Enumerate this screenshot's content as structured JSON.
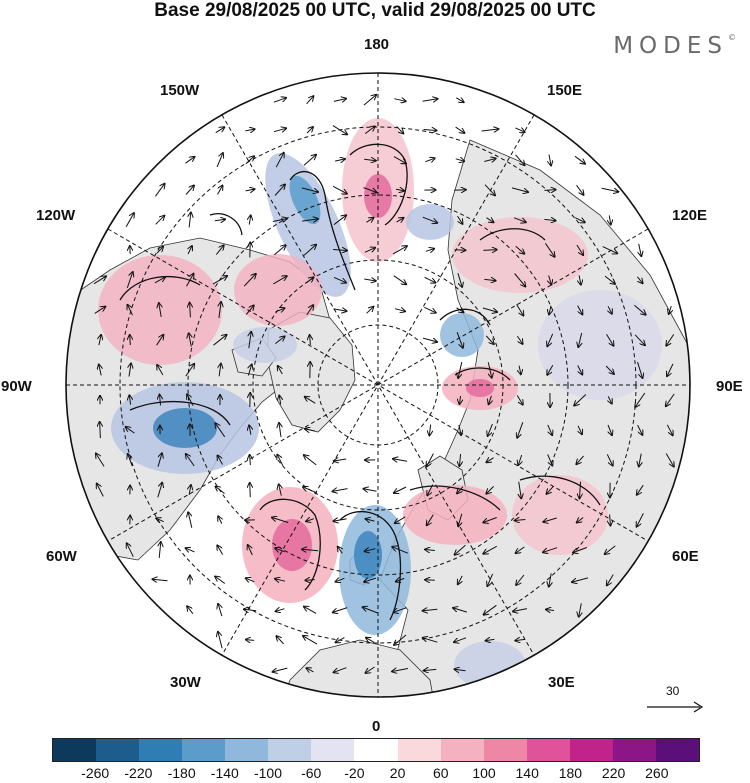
{
  "title": "Base 29/08/2025 00 UTC, valid 29/08/2025 00 UTC",
  "brand": {
    "name": "MODES",
    "mark": "©"
  },
  "longitude_labels": {
    "lon_180": "180",
    "lon_150e": "150E",
    "lon_120e": "120E",
    "lon_90e": "90E",
    "lon_60e": "60E",
    "lon_30e": "30E",
    "lon_0": "0",
    "lon_30w": "30W",
    "lon_60w": "60W",
    "lon_90w": "90W",
    "lon_120w": "120W",
    "lon_150w": "150W"
  },
  "reference_vector": {
    "value": "30"
  },
  "colorbar": {
    "colors": [
      "#0d3a5c",
      "#1c5d8d",
      "#2e7db5",
      "#5b9ccb",
      "#8fb8dc",
      "#bfcfe6",
      "#e3e3f2",
      "#ffffff",
      "#f9d9db",
      "#f4b2c0",
      "#ee86a6",
      "#e0529a",
      "#c0238a",
      "#8c1685",
      "#5b0f7a"
    ],
    "labels": [
      "-260",
      "-220",
      "-180",
      "-140",
      "-100",
      "-60",
      "-20",
      "20",
      "60",
      "100",
      "140",
      "180",
      "220",
      "260"
    ]
  },
  "map_colors": {
    "land": "#e6e6e6",
    "ocean": "#ffffff",
    "positive": "#f2b8c3",
    "positive_strong": "#e46a9c",
    "negative": "#b7c5e3",
    "negative_strong": "#3e86bd",
    "coastline": "#333333",
    "grid": "#111111"
  }
}
